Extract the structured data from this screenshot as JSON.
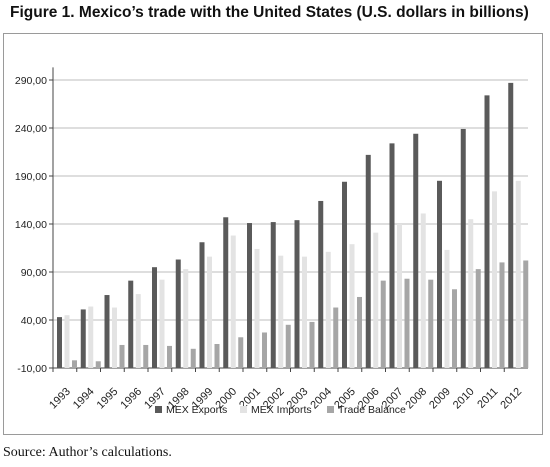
{
  "title": "Figure 1. Mexico’s trade with the United States (U.S. dollars in billions)",
  "source": "Source: Author’s calculations.",
  "chart_data": {
    "type": "bar",
    "categories": [
      "1993",
      "1994",
      "1995",
      "1996",
      "1997",
      "1998",
      "1999",
      "2000",
      "2001",
      "2002",
      "2003",
      "2004",
      "2005",
      "2006",
      "2007",
      "2008",
      "2009",
      "2010",
      "2011",
      "2012"
    ],
    "series": [
      {
        "name": "MEX Exports",
        "color": "#5a5a5a",
        "values": [
          43,
          51,
          66,
          81,
          95,
          103,
          121,
          147,
          141,
          142,
          144,
          164,
          184,
          212,
          224,
          234,
          185,
          239,
          274,
          287
        ]
      },
      {
        "name": "MEX Imports",
        "color": "#e3e3e3",
        "values": [
          45,
          54,
          53,
          67,
          82,
          93,
          106,
          128,
          114,
          107,
          106,
          111,
          119,
          131,
          140,
          151,
          113,
          145,
          174,
          185
        ]
      },
      {
        "name": "Trade Balance",
        "color": "#a6a6a6",
        "values": [
          -2,
          -3,
          14,
          14,
          13,
          10,
          15,
          22,
          27,
          35,
          38,
          53,
          64,
          81,
          83,
          82,
          72,
          93,
          100,
          102
        ]
      }
    ],
    "yticks": [
      "-10,00",
      "40,00",
      "90,00",
      "140,00",
      "190,00",
      "240,00",
      "290,00"
    ],
    "ylim": [
      -10,
      300
    ],
    "grid": true,
    "legend": "bottom"
  }
}
